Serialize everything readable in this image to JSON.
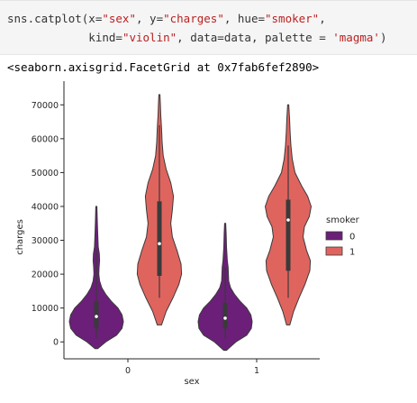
{
  "code": {
    "line1": [
      "sns.catplot(x=",
      "\"sex\"",
      ", y=",
      "\"charges\"",
      ", hue=",
      "\"smoker\"",
      ","
    ],
    "line2": [
      "            kind=",
      "\"violin\"",
      ", data=data, palette = ",
      "'magma'",
      ")"
    ]
  },
  "output": {
    "text": "<seaborn.axisgrid.FacetGrid at 0x7fab6fef2890>"
  },
  "colors": {
    "nonsmoker": "#6b1f79",
    "smoker": "#e0645e",
    "axis": "#262626"
  },
  "chart_data": {
    "type": "violin",
    "xlabel": "sex",
    "ylabel": "charges",
    "categories": [
      "0",
      "1"
    ],
    "ylim": [
      -5000,
      77000
    ],
    "yticks": [
      0,
      10000,
      20000,
      30000,
      40000,
      50000,
      60000,
      70000
    ],
    "ytick_labels": [
      "0",
      "10000",
      "20000",
      "30000",
      "40000",
      "50000",
      "60000",
      "70000"
    ],
    "legend": {
      "title": "smoker",
      "placement": "right",
      "entries": [
        "0",
        "1"
      ]
    },
    "series": [
      {
        "name": "0",
        "color": "#6b1f79",
        "violins": [
          {
            "category": "0",
            "min": -2000,
            "max": 40000,
            "q1": 4000,
            "median": 7500,
            "q3": 12000,
            "whisker_low": 1000,
            "whisker_high": 27000,
            "profile": [
              [
                -2000,
                0.05
              ],
              [
                0,
                0.35
              ],
              [
                2000,
                0.75
              ],
              [
                4000,
                0.95
              ],
              [
                6000,
                1.0
              ],
              [
                8000,
                0.95
              ],
              [
                10000,
                0.8
              ],
              [
                12000,
                0.55
              ],
              [
                14000,
                0.35
              ],
              [
                16000,
                0.2
              ],
              [
                18000,
                0.12
              ],
              [
                20000,
                0.09
              ],
              [
                22000,
                0.1
              ],
              [
                24000,
                0.12
              ],
              [
                26000,
                0.11
              ],
              [
                28000,
                0.07
              ],
              [
                32000,
                0.05
              ],
              [
                36000,
                0.035
              ],
              [
                40000,
                0.02
              ]
            ]
          },
          {
            "category": "1",
            "min": -2500,
            "max": 35000,
            "q1": 4000,
            "median": 7000,
            "q3": 11500,
            "whisker_low": 1000,
            "whisker_high": 22000,
            "profile": [
              [
                -2500,
                0.05
              ],
              [
                0,
                0.4
              ],
              [
                2000,
                0.8
              ],
              [
                4000,
                0.97
              ],
              [
                6000,
                1.0
              ],
              [
                8000,
                0.95
              ],
              [
                10000,
                0.8
              ],
              [
                12000,
                0.55
              ],
              [
                14000,
                0.35
              ],
              [
                16000,
                0.2
              ],
              [
                18000,
                0.13
              ],
              [
                20000,
                0.12
              ],
              [
                22000,
                0.11
              ],
              [
                24000,
                0.08
              ],
              [
                28000,
                0.05
              ],
              [
                32000,
                0.035
              ],
              [
                35000,
                0.02
              ]
            ]
          }
        ]
      },
      {
        "name": "1",
        "color": "#e0645e",
        "violins": [
          {
            "category": "0",
            "min": 5000,
            "max": 73000,
            "q1": 19500,
            "median": 29000,
            "q3": 41500,
            "whisker_low": 13000,
            "whisker_high": 64000,
            "profile": [
              [
                5000,
                0.08
              ],
              [
                9000,
                0.25
              ],
              [
                13000,
                0.5
              ],
              [
                17000,
                0.72
              ],
              [
                20000,
                0.82
              ],
              [
                23000,
                0.8
              ],
              [
                27000,
                0.65
              ],
              [
                31000,
                0.48
              ],
              [
                35000,
                0.42
              ],
              [
                39000,
                0.48
              ],
              [
                43000,
                0.52
              ],
              [
                47000,
                0.42
              ],
              [
                51000,
                0.25
              ],
              [
                55000,
                0.14
              ],
              [
                59000,
                0.1
              ],
              [
                63000,
                0.08
              ],
              [
                67000,
                0.05
              ],
              [
                70000,
                0.035
              ],
              [
                73000,
                0.02
              ]
            ]
          },
          {
            "category": "1",
            "min": 5000,
            "max": 70000,
            "q1": 21000,
            "median": 36000,
            "q3": 42000,
            "whisker_low": 13000,
            "whisker_high": 58000,
            "profile": [
              [
                5000,
                0.06
              ],
              [
                9000,
                0.2
              ],
              [
                13000,
                0.4
              ],
              [
                17000,
                0.62
              ],
              [
                21000,
                0.8
              ],
              [
                24000,
                0.82
              ],
              [
                27000,
                0.68
              ],
              [
                31000,
                0.55
              ],
              [
                34000,
                0.6
              ],
              [
                37000,
                0.78
              ],
              [
                40000,
                0.85
              ],
              [
                43000,
                0.72
              ],
              [
                46000,
                0.5
              ],
              [
                50000,
                0.25
              ],
              [
                54000,
                0.15
              ],
              [
                58000,
                0.1
              ],
              [
                62000,
                0.07
              ],
              [
                66000,
                0.05
              ],
              [
                70000,
                0.02
              ]
            ]
          }
        ]
      }
    ]
  }
}
